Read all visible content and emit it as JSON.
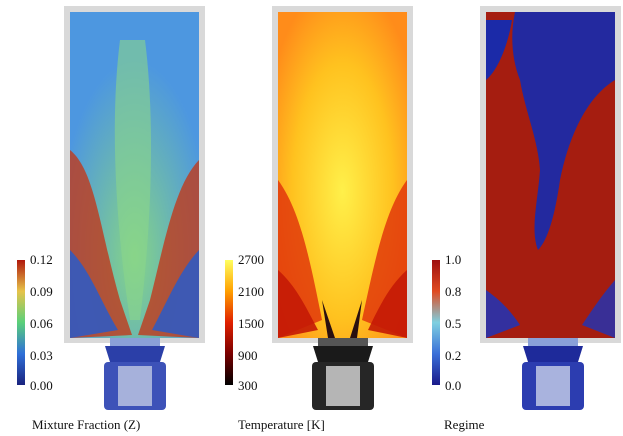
{
  "panels": [
    {
      "caption": "Mixture Fraction (Z)",
      "colorbar": {
        "ticks": [
          "0.12",
          "0.09",
          "0.06",
          "0.03",
          "0.00"
        ],
        "colors": [
          "#1a237e",
          "#2f6fd8",
          "#5ad07a",
          "#e6c34a",
          "#b0180c"
        ]
      },
      "palette": {
        "background": "#4d97e0",
        "mid": "#6ec98a",
        "jet": "#7fd27e",
        "hot": "#c13a1c",
        "edge": "#2a5bc8"
      }
    },
    {
      "caption": "Temperature [K]",
      "colorbar": {
        "ticks": [
          "2700",
          "2100",
          "1500",
          "900",
          "300"
        ],
        "colors": [
          "#000000",
          "#7a0000",
          "#e02000",
          "#ffa000",
          "#ffff60"
        ]
      },
      "palette": {
        "background": "#ff8c1a",
        "mid": "#ffc21f",
        "jet": "#ffe83a",
        "hot": "#e0300a",
        "edge": "#c41a06"
      }
    },
    {
      "caption": "Regime",
      "colorbar": {
        "ticks": [
          "1.0",
          "0.8",
          "0.5",
          "0.2",
          "0.0"
        ],
        "colors": [
          "#1a1a8a",
          "#3a6fd8",
          "#7fd0e0",
          "#e04a20",
          "#9e1010"
        ]
      },
      "palette": {
        "background": "#a51d10",
        "mid": "#b42416",
        "jet": "#1b2aa8",
        "hot": "#8e140c",
        "edge": "#1e34b8"
      }
    }
  ]
}
